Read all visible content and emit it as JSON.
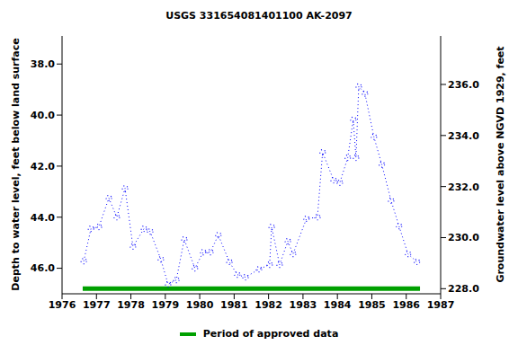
{
  "chart_data": {
    "type": "line",
    "title": "USGS 331654081401100 AK-2097",
    "y_label": "Depth to water level, feet below land surface",
    "y2_label": "Groundwater level above NGVD 1929, feet",
    "x": [
      1976.63,
      1976.84,
      1977.07,
      1977.36,
      1977.59,
      1977.83,
      1978.06,
      1978.38,
      1978.56,
      1978.87,
      1979.08,
      1979.32,
      1979.55,
      1979.86,
      1980.1,
      1980.31,
      1980.54,
      1980.86,
      1981.09,
      1981.33,
      1981.72,
      1982.03,
      1982.09,
      1982.32,
      1982.56,
      1982.71,
      1983.1,
      1983.42,
      1983.57,
      1983.89,
      1984.07,
      1984.3,
      1984.46,
      1984.54,
      1984.62,
      1984.8,
      1985.06,
      1985.29,
      1985.56,
      1985.79,
      1986.05,
      1986.31
    ],
    "values": [
      45.72,
      44.45,
      44.38,
      43.25,
      44.0,
      42.87,
      45.15,
      44.45,
      44.56,
      45.65,
      46.63,
      46.46,
      44.87,
      46.0,
      45.37,
      45.37,
      44.7,
      45.75,
      46.25,
      46.35,
      46.04,
      45.86,
      44.38,
      45.86,
      44.94,
      45.44,
      44.06,
      44.0,
      41.46,
      42.55,
      42.65,
      41.67,
      40.18,
      41.67,
      38.88,
      39.16,
      40.85,
      41.94,
      43.35,
      44.35,
      45.44,
      45.75
    ],
    "color": "#0000ff",
    "marker": "circle",
    "line_style": "dotted",
    "xlim": [
      1976,
      1987
    ],
    "xticks": [
      1976,
      1977,
      1978,
      1979,
      1980,
      1981,
      1982,
      1983,
      1984,
      1985,
      1986,
      1987
    ],
    "ylim": [
      36.9,
      47.0
    ],
    "yticks": [
      {
        "value": 38,
        "label": "38.0"
      },
      {
        "value": 40,
        "label": "40.0"
      },
      {
        "value": 42,
        "label": "42.0"
      },
      {
        "value": 44,
        "label": "44.0"
      },
      {
        "value": 46,
        "label": "46.0"
      }
    ],
    "y2lim": [
      227.8,
      237.9
    ],
    "y2ticks": [
      {
        "value": 228,
        "label": "228.0"
      },
      {
        "value": 230,
        "label": "230.0"
      },
      {
        "value": 232,
        "label": "232.0"
      },
      {
        "value": 234,
        "label": "234.0"
      },
      {
        "value": 236,
        "label": "236.0"
      }
    ],
    "approved_periods": [
      {
        "name": "Period of approved data",
        "start": 1976.6,
        "end": 1986.4,
        "color": "#00a000"
      }
    ],
    "legend": "bottom",
    "grid": false
  }
}
